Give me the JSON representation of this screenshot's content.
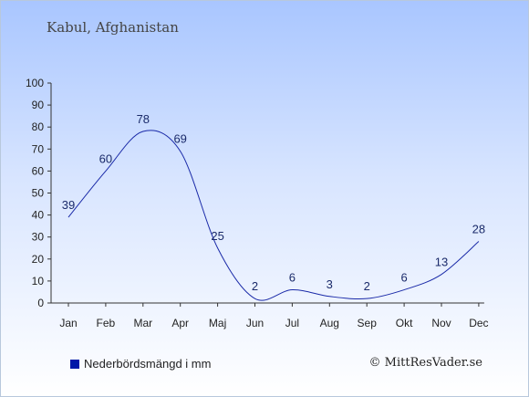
{
  "chart_data": {
    "type": "line",
    "title": "Kabul, Afghanistan",
    "categories": [
      "Jan",
      "Feb",
      "Mar",
      "Apr",
      "Maj",
      "Jun",
      "Jul",
      "Aug",
      "Sep",
      "Okt",
      "Nov",
      "Dec"
    ],
    "values": [
      39,
      60,
      78,
      69,
      25,
      2,
      6,
      3,
      2,
      6,
      13,
      28
    ],
    "yticks": [
      0,
      10,
      20,
      30,
      40,
      50,
      60,
      70,
      80,
      90,
      100
    ],
    "ylim": [
      0,
      100
    ],
    "line_color": "#1a2aa8",
    "legend": "Nederbördsmängd i mm",
    "legend_color": "#0018a8",
    "credit": "© MittResVader.se"
  }
}
